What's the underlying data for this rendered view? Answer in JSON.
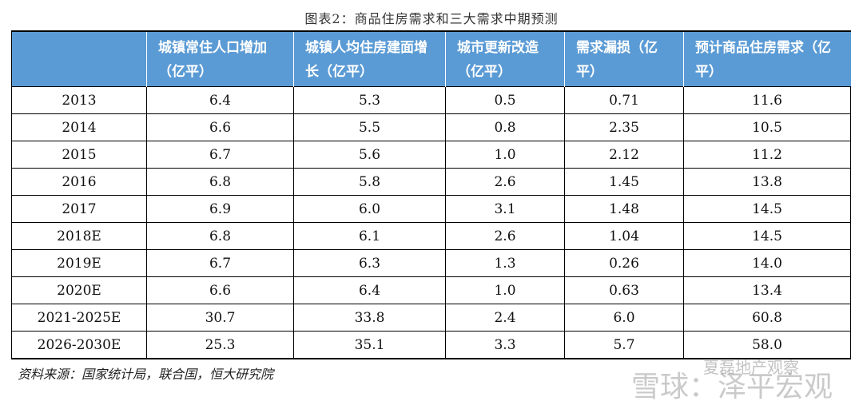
{
  "title": "图表2：商品住房需求和三大需求中期预测",
  "table": {
    "header": [
      "城镇常住人口增加（亿平）",
      "城镇人均住房建面增长（亿平）",
      "城市更新改造（亿平）",
      "需求漏损（亿平）",
      "预计商品住房需求（亿平）"
    ],
    "rows": [
      [
        "2013",
        "6.4",
        "5.3",
        "0.5",
        "0.71",
        "11.6"
      ],
      [
        "2014",
        "6.6",
        "5.5",
        "0.8",
        "2.35",
        "10.5"
      ],
      [
        "2015",
        "6.7",
        "5.6",
        "1.0",
        "2.12",
        "11.2"
      ],
      [
        "2016",
        "6.8",
        "5.8",
        "2.6",
        "1.45",
        "13.8"
      ],
      [
        "2017",
        "6.9",
        "6.0",
        "3.1",
        "1.48",
        "14.5"
      ],
      [
        "2018E",
        "6.8",
        "6.1",
        "2.6",
        "1.04",
        "14.5"
      ],
      [
        "2019E",
        "6.7",
        "6.3",
        "1.3",
        "0.26",
        "14.0"
      ],
      [
        "2020E",
        "6.6",
        "6.4",
        "1.0",
        "0.63",
        "13.4"
      ],
      [
        "2021-2025E",
        "30.7",
        "33.8",
        "2.4",
        "6.0",
        "60.8"
      ],
      [
        "2026-2030E",
        "25.3",
        "35.1",
        "3.3",
        "5.7",
        "58.0"
      ]
    ]
  },
  "source": "资料来源：国家统计局，联合国，恒大研究院",
  "watermarks": [
    "夏磊地产观察",
    "雪球：泽平宏观"
  ]
}
